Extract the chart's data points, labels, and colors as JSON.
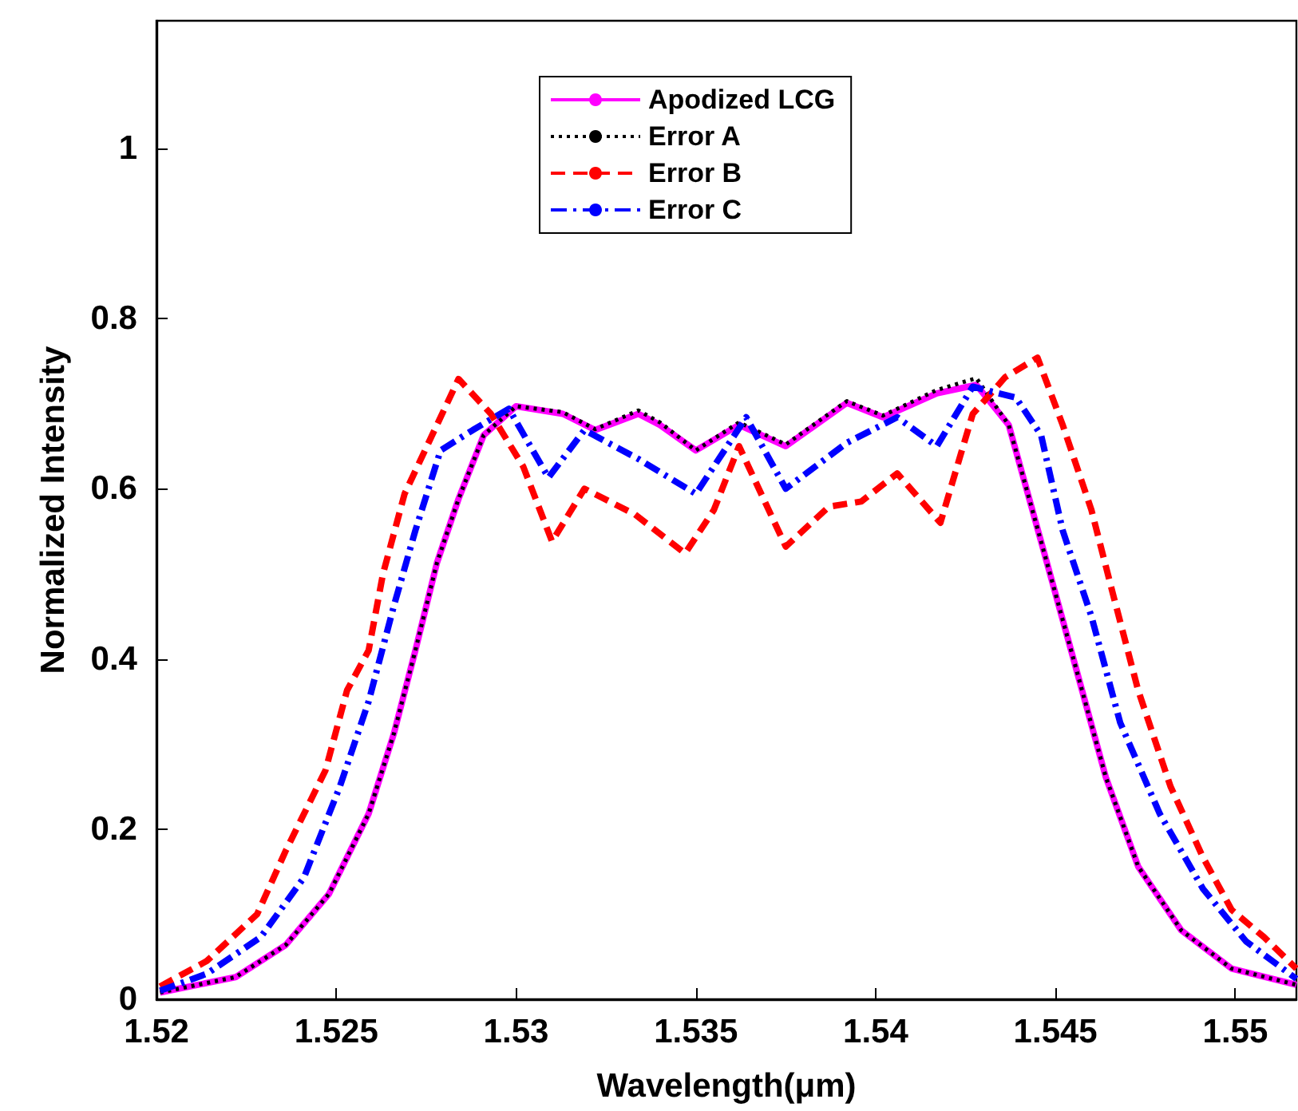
{
  "chart_data": {
    "type": "line",
    "xlabel": "Wavelength(μm)",
    "ylabel": "Normalized Intensity",
    "xlim": [
      1.52,
      1.5517
    ],
    "ylim": [
      0,
      1.15
    ],
    "xticks": [
      1.52,
      1.525,
      1.53,
      1.535,
      1.54,
      1.545,
      1.55
    ],
    "yticks": [
      0,
      0.2,
      0.4,
      0.6,
      0.8,
      1
    ],
    "grid": false,
    "legend": "top",
    "marker": "none",
    "series": [
      {
        "name": "Apodized LCG",
        "color": "#ff00ff",
        "line_style": "solid",
        "x": [
          1.5201,
          1.5222,
          1.5236,
          1.5248,
          1.5259,
          1.5266,
          1.5272,
          1.5278,
          1.5284,
          1.5291,
          1.53,
          1.5313,
          1.5322,
          1.5334,
          1.534,
          1.535,
          1.5362,
          1.5375,
          1.5392,
          1.5402,
          1.5417,
          1.5428,
          1.5437,
          1.5446,
          1.5455,
          1.5464,
          1.5473,
          1.5485,
          1.5499,
          1.5517
        ],
        "values": [
          0.008,
          0.026,
          0.064,
          0.124,
          0.218,
          0.312,
          0.41,
          0.513,
          0.588,
          0.663,
          0.697,
          0.688,
          0.669,
          0.688,
          0.675,
          0.645,
          0.675,
          0.65,
          0.701,
          0.684,
          0.712,
          0.722,
          0.675,
          0.538,
          0.4,
          0.261,
          0.156,
          0.081,
          0.036,
          0.017
        ]
      },
      {
        "name": "Error A",
        "color": "#000000",
        "line_style": "dotted",
        "x": [
          1.5201,
          1.5222,
          1.5236,
          1.5248,
          1.5259,
          1.5266,
          1.5272,
          1.5278,
          1.5284,
          1.5291,
          1.53,
          1.5313,
          1.5322,
          1.5334,
          1.534,
          1.535,
          1.5362,
          1.5375,
          1.5392,
          1.5402,
          1.5417,
          1.5428,
          1.5437,
          1.5446,
          1.5455,
          1.5464,
          1.5473,
          1.5485,
          1.5499,
          1.5517
        ],
        "values": [
          0.008,
          0.026,
          0.064,
          0.124,
          0.218,
          0.312,
          0.41,
          0.513,
          0.588,
          0.663,
          0.697,
          0.69,
          0.67,
          0.692,
          0.678,
          0.645,
          0.678,
          0.652,
          0.703,
          0.686,
          0.716,
          0.73,
          0.675,
          0.538,
          0.4,
          0.261,
          0.156,
          0.081,
          0.036,
          0.017
        ]
      },
      {
        "name": "Error B",
        "color": "#ff0000",
        "line_style": "dashed",
        "x": [
          1.5201,
          1.5214,
          1.5228,
          1.5236,
          1.5247,
          1.5253,
          1.5259,
          1.5263,
          1.5269,
          1.5278,
          1.5284,
          1.5293,
          1.5302,
          1.531,
          1.5319,
          1.5333,
          1.5347,
          1.5355,
          1.5362,
          1.5375,
          1.5387,
          1.5396,
          1.5406,
          1.5418,
          1.5427,
          1.5436,
          1.5445,
          1.5452,
          1.546,
          1.5466,
          1.5473,
          1.5482,
          1.5491,
          1.5499,
          1.5508,
          1.5517
        ],
        "values": [
          0.015,
          0.045,
          0.1,
          0.175,
          0.269,
          0.363,
          0.41,
          0.5,
          0.594,
          0.675,
          0.729,
          0.688,
          0.626,
          0.538,
          0.6,
          0.57,
          0.524,
          0.575,
          0.65,
          0.532,
          0.579,
          0.585,
          0.618,
          0.56,
          0.688,
          0.731,
          0.754,
          0.675,
          0.575,
          0.476,
          0.363,
          0.25,
          0.167,
          0.105,
          0.073,
          0.036
        ]
      },
      {
        "name": "Error C",
        "color": "#0000ff",
        "line_style": "dashdot",
        "x": [
          1.5201,
          1.5214,
          1.5229,
          1.5241,
          1.5251,
          1.5259,
          1.5266,
          1.5272,
          1.5279,
          1.5288,
          1.5298,
          1.5309,
          1.5319,
          1.5334,
          1.535,
          1.5364,
          1.5375,
          1.5392,
          1.5406,
          1.5417,
          1.5427,
          1.5439,
          1.5446,
          1.5452,
          1.546,
          1.5468,
          1.5479,
          1.5491,
          1.5503,
          1.5517
        ],
        "values": [
          0.01,
          0.03,
          0.073,
          0.143,
          0.25,
          0.35,
          0.462,
          0.551,
          0.645,
          0.669,
          0.694,
          0.613,
          0.669,
          0.635,
          0.594,
          0.684,
          0.6,
          0.654,
          0.684,
          0.65,
          0.72,
          0.707,
          0.663,
          0.551,
          0.45,
          0.325,
          0.218,
          0.13,
          0.068,
          0.024
        ]
      }
    ]
  }
}
